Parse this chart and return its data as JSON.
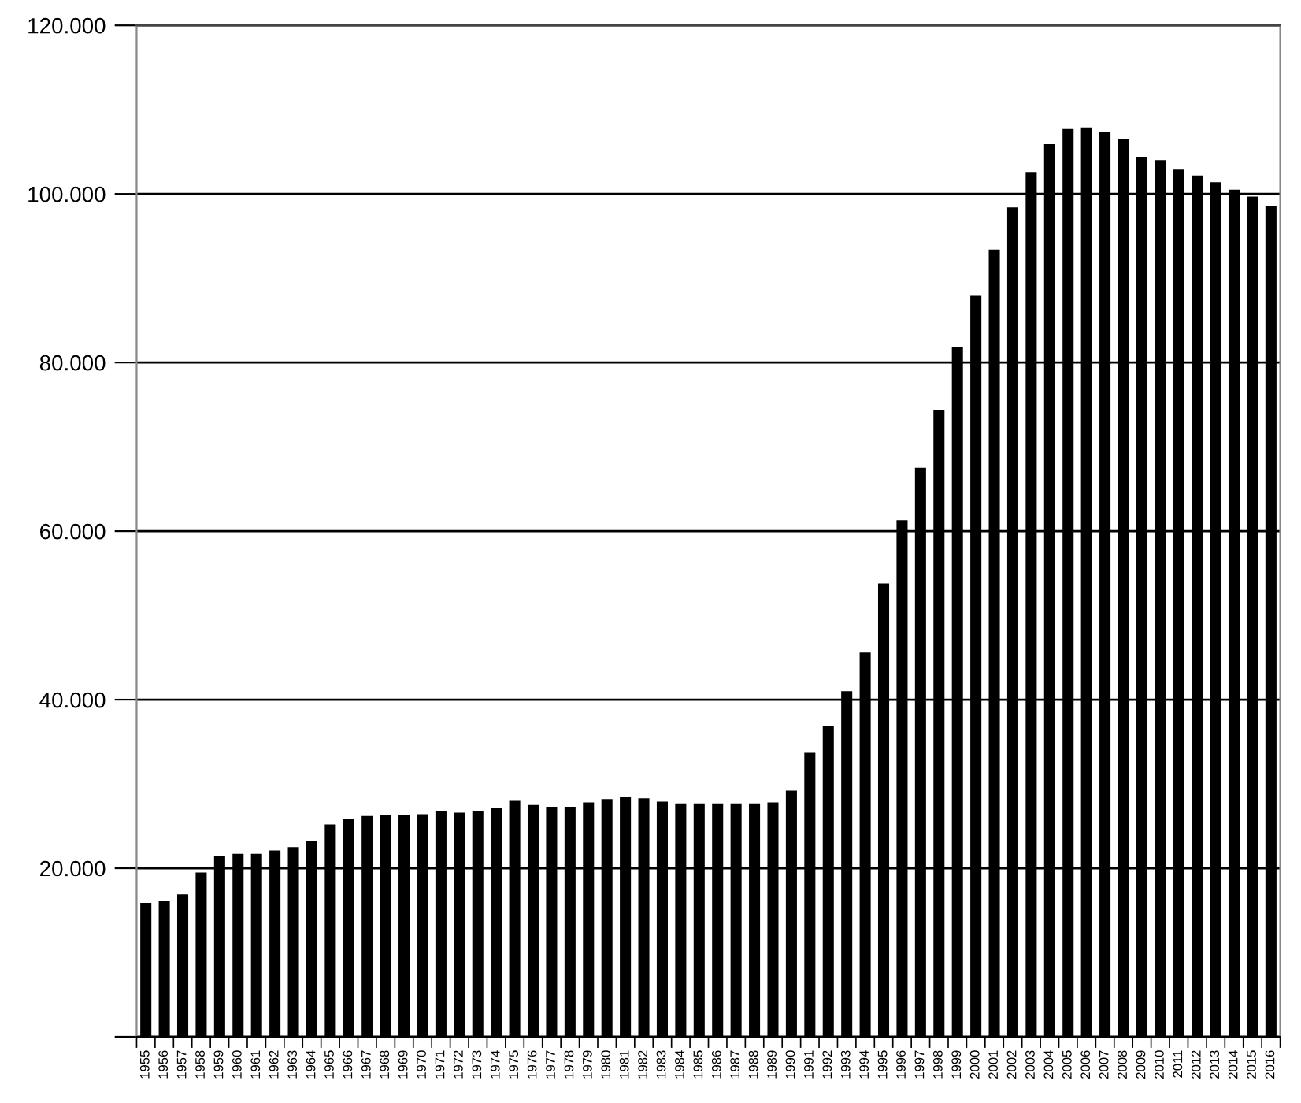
{
  "chart_data": {
    "type": "bar",
    "categories": [
      "1955",
      "1956",
      "1957",
      "1958",
      "1959",
      "1960",
      "1961",
      "1962",
      "1963",
      "1964",
      "1965",
      "1966",
      "1967",
      "1968",
      "1969",
      "1970",
      "1971",
      "1972",
      "1973",
      "1974",
      "1975",
      "1976",
      "1977",
      "1978",
      "1979",
      "1980",
      "1981",
      "1982",
      "1983",
      "1984",
      "1985",
      "1986",
      "1987",
      "1988",
      "1989",
      "1990",
      "1991",
      "1992",
      "1993",
      "1994",
      "1995",
      "1996",
      "1997",
      "1998",
      "1999",
      "2000",
      "2001",
      "2002",
      "2003",
      "2004",
      "2005",
      "2006",
      "2007",
      "2008",
      "2009",
      "2010",
      "2011",
      "2012",
      "2013",
      "2014",
      "2015",
      "2016"
    ],
    "values": [
      15900,
      16100,
      16900,
      19500,
      21500,
      21700,
      21700,
      22100,
      22500,
      23200,
      25200,
      25800,
      26200,
      26300,
      26300,
      26400,
      26800,
      26600,
      26800,
      27200,
      28000,
      27500,
      27300,
      27300,
      27800,
      28200,
      28500,
      28300,
      27900,
      27700,
      27700,
      27700,
      27700,
      27700,
      27800,
      29200,
      33700,
      36900,
      41000,
      45600,
      53800,
      61300,
      67500,
      74400,
      81800,
      87900,
      93400,
      98400,
      102600,
      105900,
      107700,
      107900,
      107400,
      106500,
      104400,
      104000,
      102900,
      102200,
      101400,
      100500,
      99700,
      98600
    ],
    "color": "#000000",
    "ylim": [
      0,
      120000
    ],
    "yticks": [
      {
        "value": 0,
        "label": null
      },
      {
        "value": 20000,
        "label": "20.000"
      },
      {
        "value": 40000,
        "label": "40.000"
      },
      {
        "value": 60000,
        "label": "60.000"
      },
      {
        "value": 80000,
        "label": "80.000"
      },
      {
        "value": 100000,
        "label": "100.000"
      },
      {
        "value": 120000,
        "label": "120.000"
      }
    ],
    "grid": "y"
  }
}
